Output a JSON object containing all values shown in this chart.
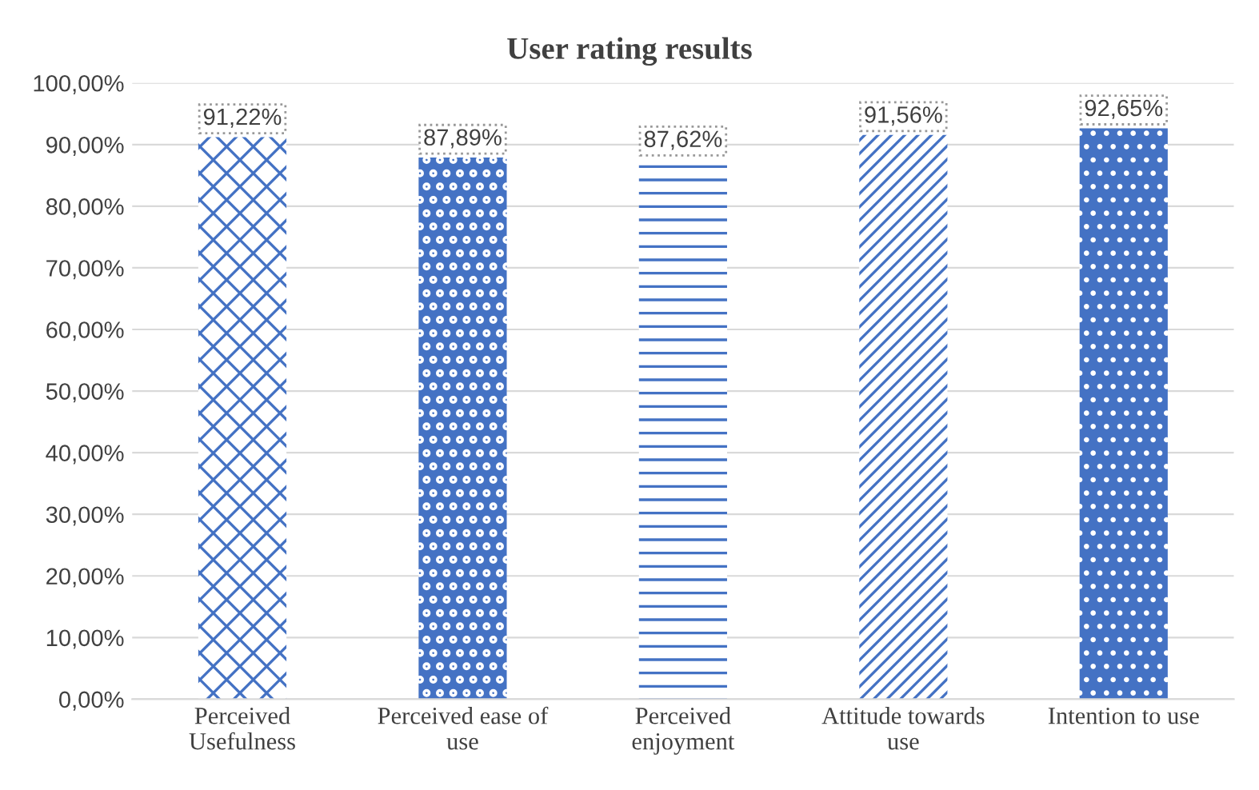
{
  "chart_data": {
    "type": "bar",
    "title": "User rating results",
    "categories": [
      "Perceived Usefulness",
      "Perceived ease of use",
      "Perceived enjoyment",
      "Attitude towards use",
      "Intention to use"
    ],
    "values": [
      91.22,
      87.89,
      87.62,
      91.56,
      92.65
    ],
    "value_labels": [
      "91,22%",
      "87,89%",
      "87,62%",
      "91,56%",
      "92,65%"
    ],
    "colors": [
      "#4472c4",
      "#4472c4",
      "#4472c4",
      "#4472c4",
      "#4472c4"
    ],
    "ylim": [
      0,
      100
    ],
    "yticks": [
      {
        "value": 0,
        "label": "0,00%"
      },
      {
        "value": 10,
        "label": "10,00%"
      },
      {
        "value": 20,
        "label": "20,00%"
      },
      {
        "value": 30,
        "label": "30,00%"
      },
      {
        "value": 40,
        "label": "40,00%"
      },
      {
        "value": 50,
        "label": "50,00%"
      },
      {
        "value": 60,
        "label": "60,00%"
      },
      {
        "value": 70,
        "label": "70,00%"
      },
      {
        "value": 80,
        "label": "80,00%"
      },
      {
        "value": 90,
        "label": "90,00%"
      },
      {
        "value": 100,
        "label": "100,00%"
      }
    ],
    "grid": "y"
  }
}
